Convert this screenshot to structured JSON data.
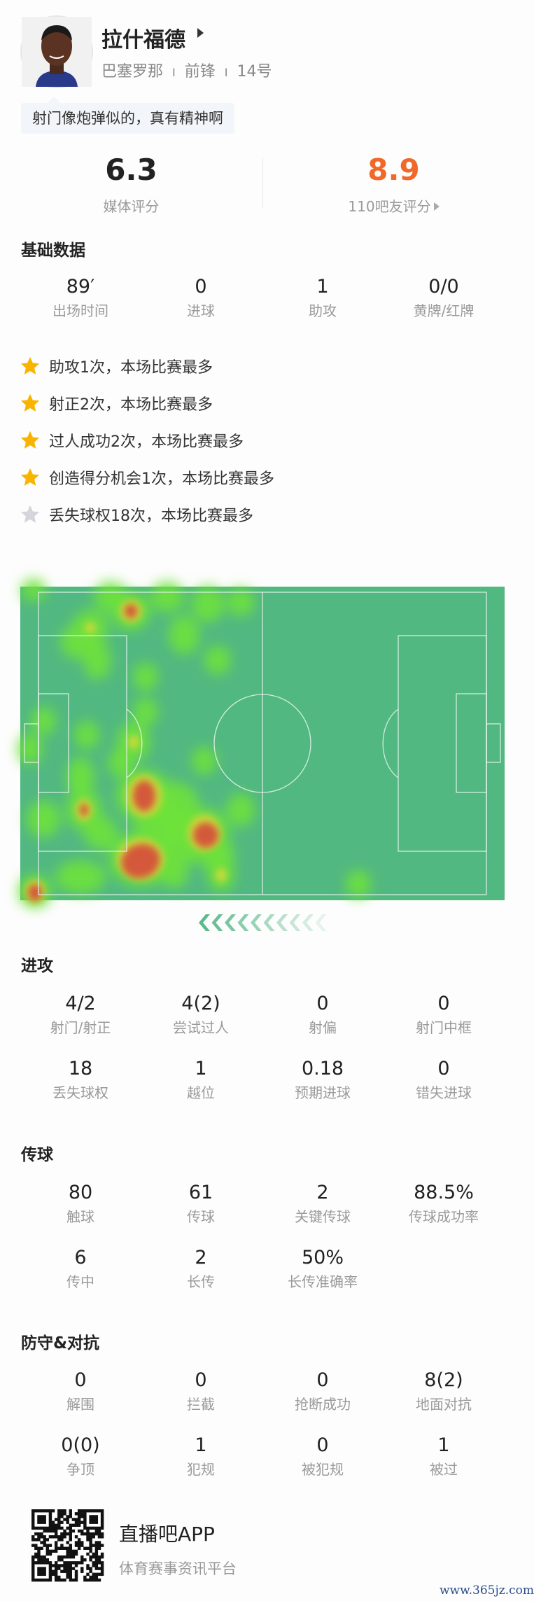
{
  "player": {
    "name": "拉什福德",
    "team": "巴塞罗那",
    "position": "前锋",
    "number": "14号",
    "separator": "I",
    "comment": "射门像炮弹似的，真有精神啊"
  },
  "ratings": {
    "media": {
      "value": "6.3",
      "label": "媒体评分"
    },
    "fans": {
      "value": "8.9",
      "label": "110吧友评分",
      "color": "#f0692a"
    }
  },
  "basic": {
    "title": "基础数据",
    "stats": [
      {
        "value": "89′",
        "label": "出场时间"
      },
      {
        "value": "0",
        "label": "进球"
      },
      {
        "value": "1",
        "label": "助攻"
      },
      {
        "value": "0/0",
        "label": "黄牌/红牌"
      }
    ]
  },
  "highlights": [
    {
      "text": "助攻1次，本场比赛最多",
      "icon": "star-gold"
    },
    {
      "text": "射正2次，本场比赛最多",
      "icon": "star-gold"
    },
    {
      "text": "过人成功2次，本场比赛最多",
      "icon": "star-gold"
    },
    {
      "text": "创造得分机会1次，本场比赛最多",
      "icon": "star-gold"
    },
    {
      "text": "丢失球权18次，本场比赛最多",
      "icon": "star-gray"
    }
  ],
  "heatmap": {
    "pitch_color": "#52b882",
    "direction": "attacking-left"
  },
  "attack": {
    "title": "进攻",
    "stats": [
      {
        "value": "4/2",
        "label": "射门/射正"
      },
      {
        "value": "4(2)",
        "label": "尝试过人"
      },
      {
        "value": "0",
        "label": "射偏"
      },
      {
        "value": "0",
        "label": "射门中框"
      },
      {
        "value": "18",
        "label": "丢失球权"
      },
      {
        "value": "1",
        "label": "越位"
      },
      {
        "value": "0.18",
        "label": "预期进球"
      },
      {
        "value": "0",
        "label": "错失进球"
      }
    ]
  },
  "passing": {
    "title": "传球",
    "stats": [
      {
        "value": "80",
        "label": "触球"
      },
      {
        "value": "61",
        "label": "传球"
      },
      {
        "value": "2",
        "label": "关键传球"
      },
      {
        "value": "88.5%",
        "label": "传球成功率"
      },
      {
        "value": "6",
        "label": "传中"
      },
      {
        "value": "2",
        "label": "长传"
      },
      {
        "value": "50%",
        "label": "长传准确率"
      }
    ]
  },
  "defense": {
    "title": "防守&对抗",
    "stats": [
      {
        "value": "0",
        "label": "解围"
      },
      {
        "value": "0",
        "label": "拦截"
      },
      {
        "value": "0",
        "label": "抢断成功"
      },
      {
        "value": "8(2)",
        "label": "地面对抗"
      },
      {
        "value": "0(0)",
        "label": "争顶"
      },
      {
        "value": "1",
        "label": "犯规"
      },
      {
        "value": "0",
        "label": "被犯规"
      },
      {
        "value": "1",
        "label": "被过"
      }
    ]
  },
  "footer": {
    "app_name": "直播吧APP",
    "tagline": "体育赛事资讯平台",
    "watermark": "www.365jz.com"
  }
}
